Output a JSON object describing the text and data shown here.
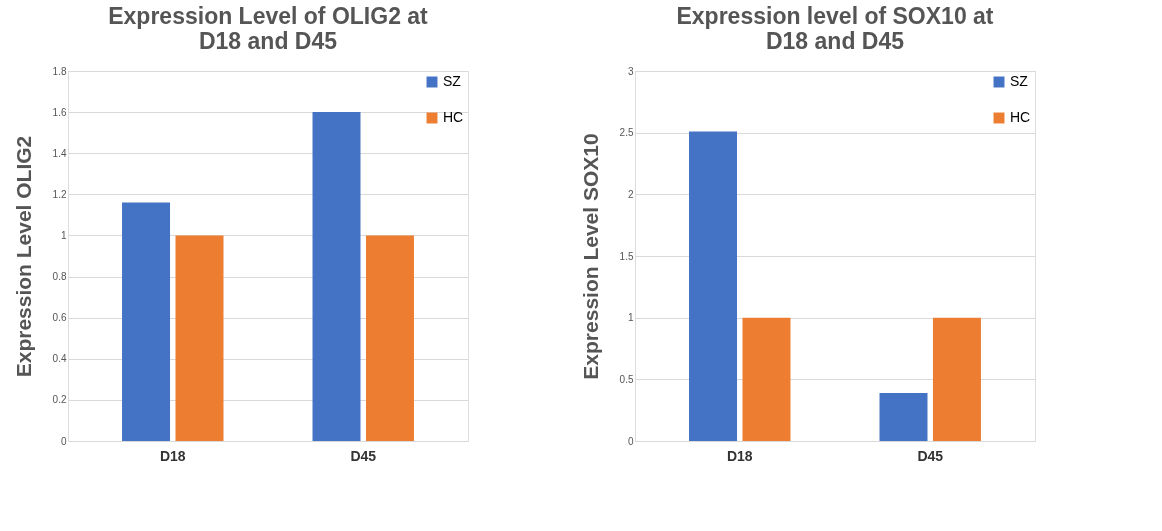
{
  "chart_data": [
    {
      "type": "bar",
      "title": "Expression Level of OLIG2 at D18 and D45",
      "ylabel": "Expression Level OLIG2",
      "categories": [
        "D18",
        "D45"
      ],
      "series": [
        {
          "name": "SZ",
          "color": "#4472c4",
          "values": [
            1.16,
            1.6
          ]
        },
        {
          "name": "HC",
          "color": "#ed7d31",
          "values": [
            1.0,
            1.0
          ]
        }
      ],
      "ylim": [
        0,
        1.8
      ],
      "yticks": [
        0,
        0.2,
        0.4,
        0.6,
        0.8,
        1,
        1.2,
        1.4,
        1.6,
        1.8
      ],
      "grid": "y",
      "legend": "top right"
    },
    {
      "type": "bar",
      "title": "Expression level of SOX10 at D18 and D45",
      "ylabel": "Expression Level SOX10",
      "categories": [
        "D18",
        "D45"
      ],
      "series": [
        {
          "name": "SZ",
          "color": "#4472c4",
          "values": [
            2.51,
            0.39
          ]
        },
        {
          "name": "HC",
          "color": "#ed7d31",
          "values": [
            1.0,
            1.0
          ]
        }
      ],
      "ylim": [
        0,
        3
      ],
      "yticks": [
        0,
        0.5,
        1,
        1.5,
        2,
        2.5,
        3
      ],
      "grid": "y",
      "legend": "top right"
    }
  ]
}
